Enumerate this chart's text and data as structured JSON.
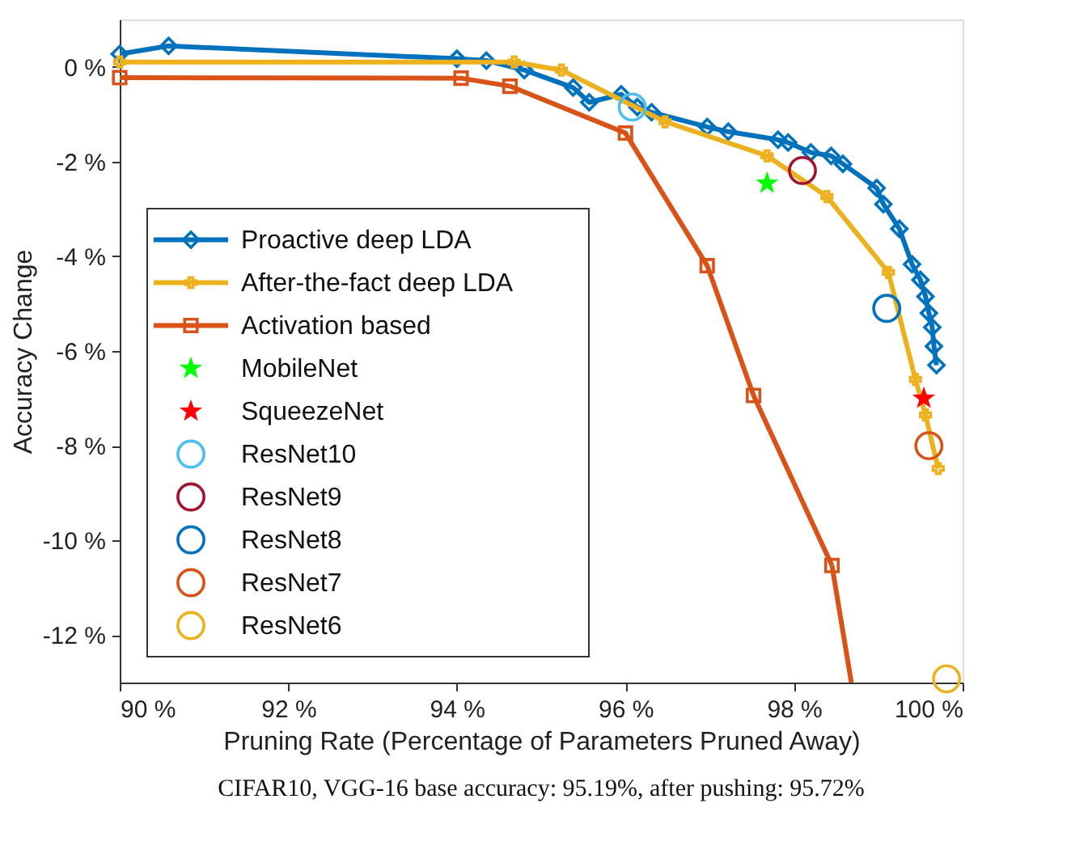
{
  "chart_data": {
    "type": "line",
    "xlabel": "Pruning Rate (Percentage of Parameters Pruned Away)",
    "ylabel": "Accuracy Change",
    "annotations": [
      "CIFAR10, VGG-16 base accuracy: 95.19%, after pushing: 95.72%"
    ],
    "xlim": [
      90,
      100
    ],
    "ylim": [
      -13,
      1
    ],
    "xticks": [
      {
        "value": 90,
        "label": "90 %"
      },
      {
        "value": 92,
        "label": "92 %"
      },
      {
        "value": 94,
        "label": "94 %"
      },
      {
        "value": 96,
        "label": "96 %"
      },
      {
        "value": 98,
        "label": "98 %"
      },
      {
        "value": 100,
        "label": "100 %"
      }
    ],
    "yticks": [
      {
        "value": 0,
        "label": "0 %"
      },
      {
        "value": -2,
        "label": "-2 %"
      },
      {
        "value": -4,
        "label": "-4 %"
      },
      {
        "value": -6,
        "label": "-6 %"
      },
      {
        "value": -8,
        "label": "-8 %"
      },
      {
        "value": -10,
        "label": "-10 %"
      },
      {
        "value": -12,
        "label": "-12 %"
      }
    ],
    "grid": false,
    "legend": "left",
    "series": [
      {
        "name": "Proactive deep LDA",
        "color": "#0072bd",
        "marker": "diamond",
        "x": [
          90.0,
          90.58,
          94.0,
          94.35,
          94.8,
          95.38,
          95.57,
          95.95,
          96.14,
          96.31,
          96.97,
          97.22,
          97.81,
          97.93,
          98.2,
          98.44,
          98.58,
          98.98,
          99.06,
          99.25,
          99.4,
          99.5,
          99.56,
          99.6,
          99.64,
          99.66,
          99.69
        ],
        "values": [
          0.27,
          0.44,
          0.17,
          0.13,
          -0.07,
          -0.44,
          -0.75,
          -0.58,
          -0.85,
          -0.96,
          -1.27,
          -1.37,
          -1.54,
          -1.6,
          -1.81,
          -1.88,
          -2.05,
          -2.56,
          -2.9,
          -3.42,
          -4.17,
          -4.5,
          -4.85,
          -5.2,
          -5.5,
          -5.9,
          -6.3
        ]
      },
      {
        "name": "After-the-fact deep LDA",
        "color": "#edb120",
        "marker": "cross",
        "x": [
          90.0,
          94.68,
          95.24,
          96.47,
          97.68,
          98.39,
          99.12,
          99.44,
          99.56,
          99.71
        ],
        "values": [
          0.1,
          0.1,
          -0.07,
          -1.16,
          -1.88,
          -2.74,
          -4.34,
          -6.6,
          -7.35,
          -8.48
        ]
      },
      {
        "name": "Activation based",
        "color": "#d95319",
        "marker": "square",
        "x": [
          90.0,
          94.05,
          94.63,
          96.0,
          96.97,
          97.52,
          98.45
        ],
        "values": [
          -0.23,
          -0.24,
          -0.41,
          -1.4,
          -4.2,
          -6.94,
          -10.53
        ]
      },
      {
        "color": "#d95319",
        "marker": "none",
        "x": [
          98.45,
          98.68
        ],
        "values": [
          -10.53,
          -13
        ]
      },
      {
        "name": "MobileNet",
        "color": "#00ff00",
        "type": "scatter",
        "marker": "star",
        "x": [
          97.68
        ],
        "values": [
          -2.46
        ]
      },
      {
        "name": "SqueezeNet",
        "color": "#ff0000",
        "type": "scatter",
        "marker": "star",
        "x": [
          99.54
        ],
        "values": [
          -7.0
        ]
      },
      {
        "name": "ResNet10",
        "color": "#4dbeee",
        "type": "scatter",
        "marker": "circle",
        "x": [
          96.08
        ],
        "values": [
          -0.85
        ]
      },
      {
        "name": "ResNet9",
        "color": "#a2142f",
        "type": "scatter",
        "marker": "circle",
        "x": [
          98.1
        ],
        "values": [
          -2.19
        ]
      },
      {
        "name": "ResNet8",
        "color": "#0072bd",
        "type": "scatter",
        "marker": "circle",
        "x": [
          99.1
        ],
        "values": [
          -5.1
        ]
      },
      {
        "name": "ResNet7",
        "color": "#d95319",
        "type": "scatter",
        "marker": "circle",
        "x": [
          99.6
        ],
        "values": [
          -8.0
        ]
      },
      {
        "name": "ResNet6",
        "color": "#edb120",
        "type": "scatter",
        "marker": "circle",
        "x": [
          99.81
        ],
        "values": [
          -12.92
        ]
      }
    ]
  }
}
